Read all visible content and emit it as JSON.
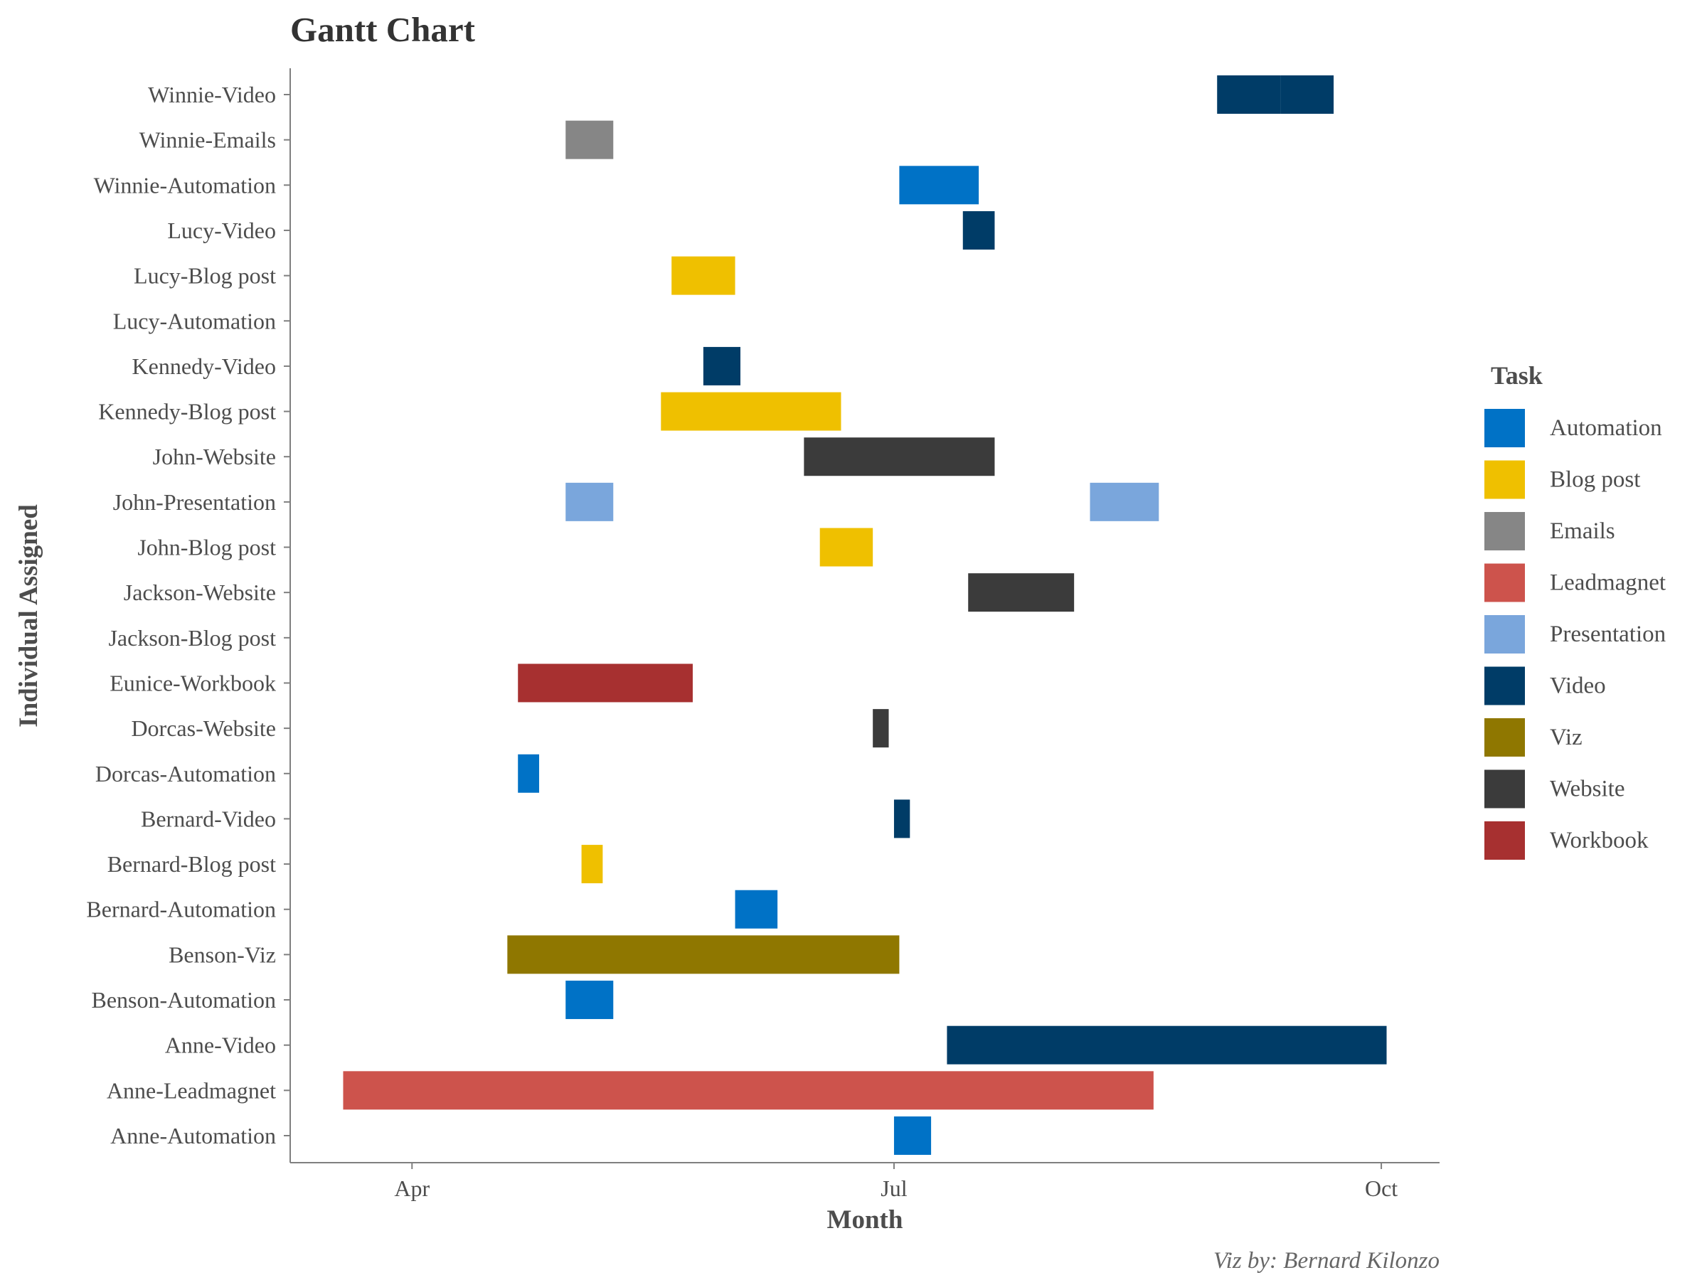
{
  "chart_data": {
    "type": "gantt",
    "title": "Gantt Chart",
    "xlabel": "Month",
    "ylabel": "Individual Assigned",
    "caption": "Viz by: Bernard Kilonzo",
    "x_ticks": [
      {
        "label": "Apr",
        "date": "2021-04-01"
      },
      {
        "label": "Jul",
        "date": "2021-07-01"
      },
      {
        "label": "Oct",
        "date": "2021-10-01"
      }
    ],
    "xlim": [
      "2021-03-09",
      "2021-10-12"
    ],
    "legend": {
      "title": "Task",
      "position": "right",
      "items": [
        {
          "label": "Automation",
          "color": "#0072C6"
        },
        {
          "label": "Blog post",
          "color": "#EFC000"
        },
        {
          "label": "Emails",
          "color": "#868686"
        },
        {
          "label": "Leadmagnet",
          "color": "#CD534C"
        },
        {
          "label": "Presentation",
          "color": "#7AA6DC"
        },
        {
          "label": "Video",
          "color": "#003C67"
        },
        {
          "label": "Viz",
          "color": "#8F7700"
        },
        {
          "label": "Website",
          "color": "#3B3B3B"
        },
        {
          "label": "Workbook",
          "color": "#A73030"
        }
      ]
    },
    "categories": [
      "Winnie-Video",
      "Winnie-Emails",
      "Winnie-Automation",
      "Lucy-Video",
      "Lucy-Blog post",
      "Lucy-Automation",
      "Kennedy-Video",
      "Kennedy-Blog post",
      "John-Website",
      "John-Presentation",
      "John-Blog post",
      "Jackson-Website",
      "Jackson-Blog post",
      "Eunice-Workbook",
      "Dorcas-Website",
      "Dorcas-Automation",
      "Bernard-Video",
      "Bernard-Blog post",
      "Bernard-Automation",
      "Benson-Viz",
      "Benson-Automation",
      "Anne-Video",
      "Anne-Leadmagnet",
      "Anne-Automation"
    ],
    "tasks": [
      {
        "row": "Winnie-Video",
        "task": "Video",
        "start": "2021-08-31",
        "end": "2021-09-12"
      },
      {
        "row": "Winnie-Video",
        "task": "Video",
        "start": "2021-09-12",
        "end": "2021-09-22"
      },
      {
        "row": "Winnie-Emails",
        "task": "Emails",
        "start": "2021-04-30",
        "end": "2021-05-09"
      },
      {
        "row": "Winnie-Automation",
        "task": "Automation",
        "start": "2021-07-02",
        "end": "2021-07-17"
      },
      {
        "row": "Lucy-Video",
        "task": "Video",
        "start": "2021-07-14",
        "end": "2021-07-20"
      },
      {
        "row": "Lucy-Blog post",
        "task": "Blog post",
        "start": "2021-05-20",
        "end": "2021-06-01"
      },
      {
        "row": "Kennedy-Video",
        "task": "Video",
        "start": "2021-05-26",
        "end": "2021-06-02"
      },
      {
        "row": "Kennedy-Blog post",
        "task": "Blog post",
        "start": "2021-05-18",
        "end": "2021-06-21"
      },
      {
        "row": "John-Website",
        "task": "Website",
        "start": "2021-06-14",
        "end": "2021-07-20"
      },
      {
        "row": "John-Presentation",
        "task": "Presentation",
        "start": "2021-04-30",
        "end": "2021-05-09"
      },
      {
        "row": "John-Presentation",
        "task": "Presentation",
        "start": "2021-08-07",
        "end": "2021-08-20"
      },
      {
        "row": "John-Blog post",
        "task": "Blog post",
        "start": "2021-06-17",
        "end": "2021-06-27"
      },
      {
        "row": "Jackson-Website",
        "task": "Website",
        "start": "2021-07-15",
        "end": "2021-08-04"
      },
      {
        "row": "Eunice-Workbook",
        "task": "Workbook",
        "start": "2021-04-21",
        "end": "2021-05-24"
      },
      {
        "row": "Dorcas-Website",
        "task": "Website",
        "start": "2021-06-27",
        "end": "2021-06-30"
      },
      {
        "row": "Dorcas-Automation",
        "task": "Automation",
        "start": "2021-04-21",
        "end": "2021-04-25"
      },
      {
        "row": "Bernard-Video",
        "task": "Video",
        "start": "2021-07-01",
        "end": "2021-07-04"
      },
      {
        "row": "Bernard-Blog post",
        "task": "Blog post",
        "start": "2021-05-03",
        "end": "2021-05-07"
      },
      {
        "row": "Bernard-Automation",
        "task": "Automation",
        "start": "2021-06-01",
        "end": "2021-06-09"
      },
      {
        "row": "Benson-Viz",
        "task": "Viz",
        "start": "2021-04-19",
        "end": "2021-07-02"
      },
      {
        "row": "Benson-Automation",
        "task": "Automation",
        "start": "2021-04-30",
        "end": "2021-05-09"
      },
      {
        "row": "Anne-Video",
        "task": "Video",
        "start": "2021-07-11",
        "end": "2021-10-02"
      },
      {
        "row": "Anne-Leadmagnet",
        "task": "Leadmagnet",
        "start": "2021-03-19",
        "end": "2021-08-19"
      },
      {
        "row": "Anne-Automation",
        "task": "Automation",
        "start": "2021-07-01",
        "end": "2021-07-08"
      }
    ]
  }
}
